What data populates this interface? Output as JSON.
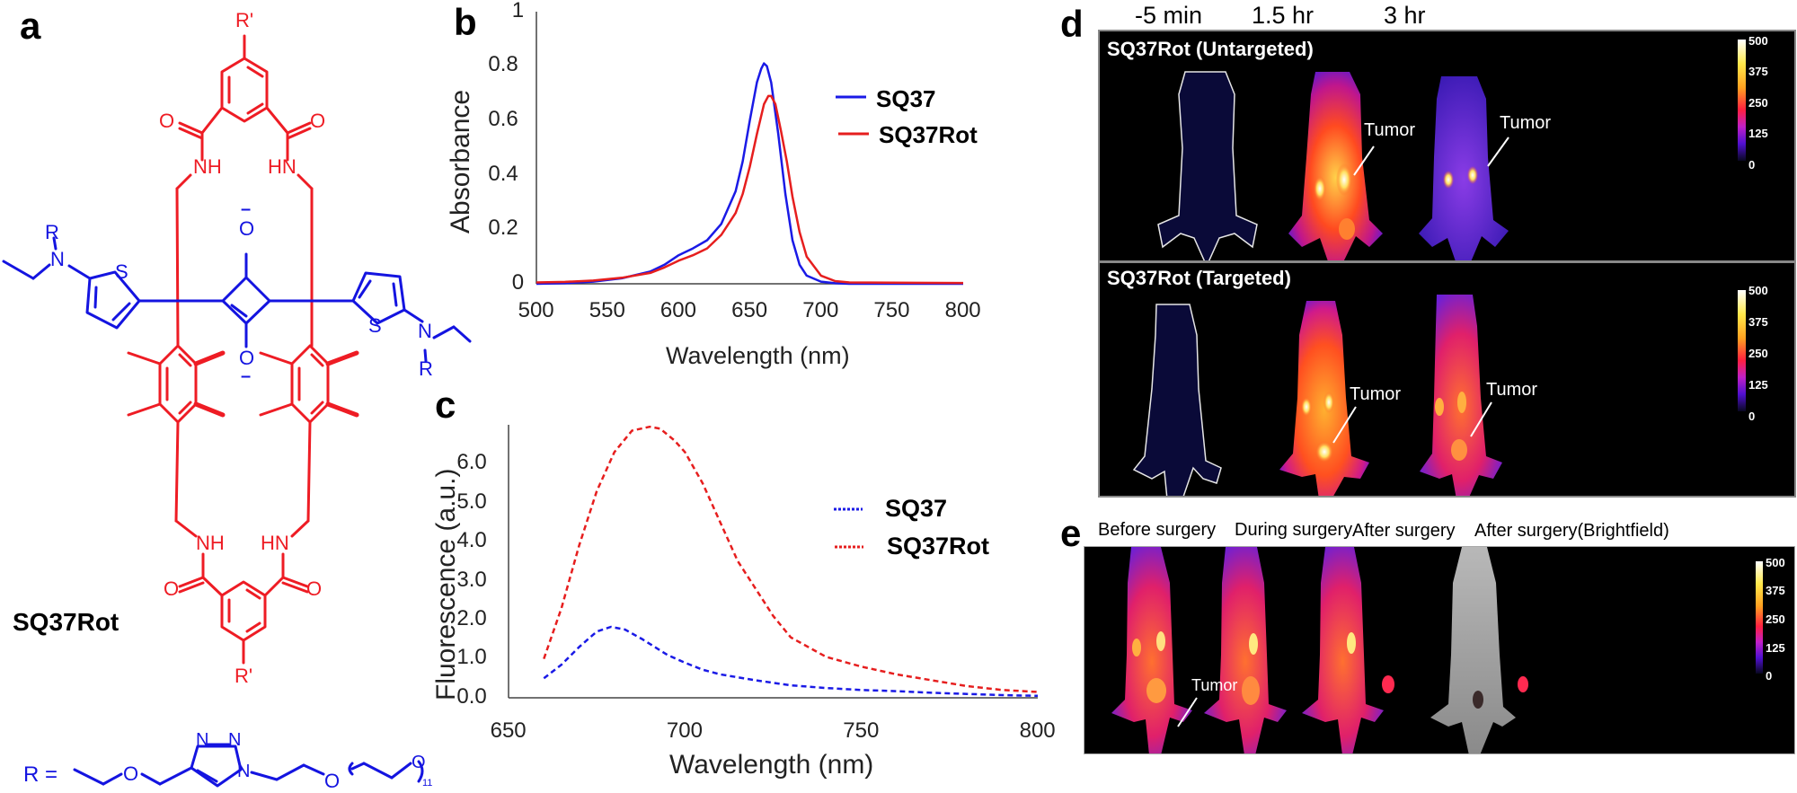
{
  "panels": {
    "a": {
      "label": "a",
      "compound_name": "SQ37Rot",
      "r_group_label": "R =",
      "r_prime": "R'",
      "r_group_subscript": "11",
      "atoms": {
        "nh": "NH",
        "hn": "HN",
        "o": "O",
        "s": "S",
        "n": "N",
        "r": "R",
        "minus": "–",
        "n_triazole": "N"
      }
    },
    "b": {
      "label": "b"
    },
    "c": {
      "label": "c"
    },
    "d": {
      "label": "d",
      "timepoints": [
        "-5 min",
        "1.5 hr",
        "3 hr"
      ],
      "rows": [
        {
          "title": "SQ37Rot (Untargeted)",
          "tumor_labels": [
            "Tumor",
            "Tumor"
          ]
        },
        {
          "title": "SQ37Rot (Targeted)",
          "tumor_labels": [
            "Tumor",
            "Tumor"
          ]
        }
      ],
      "colorbar_ticks": [
        "500",
        "375",
        "250",
        "125",
        "0"
      ]
    },
    "e": {
      "label": "e",
      "stages": [
        "Before surgery",
        "During surgery",
        "After surgery",
        "After surgery(Brightfield)"
      ],
      "tumor_label": "Tumor",
      "colorbar_ticks": [
        "500",
        "375",
        "250",
        "125",
        "0"
      ]
    }
  },
  "colors": {
    "sq37": "#1a1ae6",
    "sq37rot": "#e61e1e",
    "rotaxane": "#ee1c24",
    "dye": "#1414e0"
  },
  "chart_data": [
    {
      "id": "b",
      "type": "line",
      "title": "",
      "xlabel": "Wavelength (nm)",
      "ylabel": "Absorbance",
      "xlim": [
        500,
        800
      ],
      "ylim": [
        0,
        1
      ],
      "xticks": [
        "500",
        "550",
        "600",
        "650",
        "700",
        "750",
        "800"
      ],
      "yticks": [
        "0",
        "0.2",
        "0.4",
        "0.6",
        "0.8",
        "1"
      ],
      "legend": "right",
      "grid": false,
      "series": [
        {
          "name": "SQ37",
          "style": "solid",
          "x": [
            500,
            520,
            540,
            560,
            580,
            590,
            600,
            610,
            620,
            630,
            640,
            645,
            650,
            655,
            658,
            660,
            662,
            665,
            670,
            675,
            680,
            685,
            690,
            700,
            710,
            720,
            750,
            800
          ],
          "y": [
            0.0,
            0.002,
            0.008,
            0.02,
            0.045,
            0.07,
            0.105,
            0.13,
            0.16,
            0.22,
            0.34,
            0.45,
            0.6,
            0.74,
            0.79,
            0.81,
            0.8,
            0.74,
            0.55,
            0.33,
            0.16,
            0.07,
            0.03,
            0.008,
            0.002,
            0.0,
            0.0,
            0.0
          ]
        },
        {
          "name": "SQ37Rot",
          "style": "solid",
          "x": [
            500,
            520,
            540,
            560,
            580,
            590,
            600,
            610,
            620,
            630,
            640,
            645,
            650,
            655,
            660,
            663,
            665,
            668,
            672,
            676,
            680,
            685,
            690,
            700,
            710,
            720,
            750,
            800
          ],
          "y": [
            0.005,
            0.007,
            0.012,
            0.022,
            0.04,
            0.06,
            0.085,
            0.105,
            0.13,
            0.18,
            0.26,
            0.33,
            0.43,
            0.55,
            0.66,
            0.69,
            0.69,
            0.66,
            0.56,
            0.45,
            0.32,
            0.19,
            0.1,
            0.03,
            0.01,
            0.005,
            0.004,
            0.003
          ]
        }
      ]
    },
    {
      "id": "c",
      "type": "line",
      "title": "",
      "xlabel": "Wavelength (nm)",
      "ylabel": "Fluorescence (a.u.)",
      "xlim": [
        650,
        800
      ],
      "ylim": [
        0,
        7
      ],
      "xticks": [
        "650",
        "700",
        "750",
        "800"
      ],
      "yticks": [
        "0.0",
        "1.0",
        "2.0",
        "3.0",
        "4.0",
        "5.0",
        "6.0"
      ],
      "legend": "right",
      "grid": false,
      "series": [
        {
          "name": "SQ37",
          "style": "dashed",
          "x": [
            660,
            665,
            670,
            675,
            679,
            683,
            688,
            695,
            700,
            705,
            710,
            720,
            730,
            740,
            750,
            760,
            770,
            780,
            790,
            800
          ],
          "y": [
            0.5,
            0.85,
            1.3,
            1.7,
            1.82,
            1.75,
            1.5,
            1.1,
            0.9,
            0.72,
            0.6,
            0.45,
            0.32,
            0.25,
            0.2,
            0.17,
            0.13,
            0.1,
            0.07,
            0.05
          ]
        },
        {
          "name": "SQ37Rot",
          "style": "dashed",
          "x": [
            660,
            665,
            670,
            675,
            680,
            685,
            690,
            693,
            697,
            700,
            705,
            710,
            715,
            720,
            725,
            730,
            740,
            750,
            760,
            770,
            780,
            790,
            800
          ],
          "y": [
            1.0,
            2.3,
            3.9,
            5.3,
            6.3,
            6.85,
            6.95,
            6.9,
            6.6,
            6.3,
            5.5,
            4.5,
            3.5,
            2.8,
            2.1,
            1.55,
            1.05,
            0.8,
            0.6,
            0.45,
            0.3,
            0.2,
            0.15
          ]
        }
      ]
    }
  ]
}
